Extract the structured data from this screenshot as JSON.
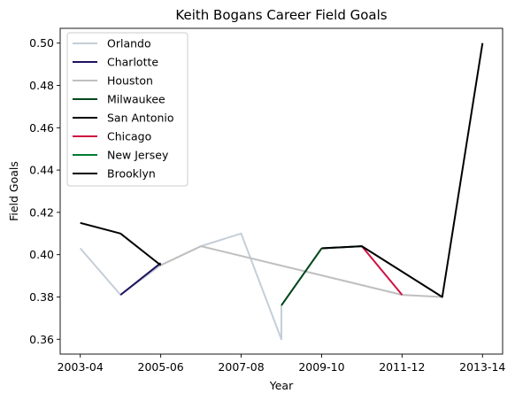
{
  "chart_data": {
    "type": "line",
    "title": "Keith Bogans Career Field Goals",
    "xlabel": "Year",
    "ylabel": "Field Goals",
    "x_ticks": [
      "2003-04",
      "2005-06",
      "2007-08",
      "2009-10",
      "2011-12",
      "2013-14"
    ],
    "x_tick_positions": [
      0,
      2,
      4,
      6,
      8,
      10
    ],
    "ylim": [
      0.353,
      0.507
    ],
    "xlim": [
      -0.5,
      10.5
    ],
    "y_ticks": [
      0.36,
      0.38,
      0.4,
      0.42,
      0.44,
      0.46,
      0.48,
      0.5
    ],
    "y_tick_labels": [
      "0.36",
      "0.38",
      "0.40",
      "0.42",
      "0.44",
      "0.46",
      "0.48",
      "0.50"
    ],
    "grid": false,
    "legend_position": "top-left",
    "series": [
      {
        "name": "Orlando",
        "color": "#c4ced8",
        "points": [
          [
            0,
            0.403
          ],
          [
            1,
            0.381
          ],
          [
            2,
            0.395
          ],
          [
            3,
            0.404
          ],
          [
            4,
            0.41
          ],
          [
            5,
            0.36
          ],
          [
            5,
            0.376
          ]
        ]
      },
      {
        "name": "Charlotte",
        "color": "#1d1160",
        "points": [
          [
            1,
            0.381
          ],
          [
            2,
            0.396
          ]
        ]
      },
      {
        "name": "Houston",
        "color": "#bfbfbf",
        "points": [
          [
            2,
            0.395
          ],
          [
            3,
            0.404
          ],
          [
            8,
            0.381
          ],
          [
            9,
            0.38
          ]
        ]
      },
      {
        "name": "Milwaukee",
        "color": "#00471b",
        "points": [
          [
            5,
            0.376
          ],
          [
            6,
            0.403
          ]
        ]
      },
      {
        "name": "San Antonio",
        "color": "#000000",
        "points": [
          [
            0,
            0.415
          ],
          [
            1,
            0.41
          ],
          [
            2,
            0.395
          ]
        ]
      },
      {
        "name": "Chicago",
        "color": "#ce1141",
        "points": [
          [
            7,
            0.404
          ],
          [
            8,
            0.381
          ]
        ]
      },
      {
        "name": "New Jersey",
        "color": "#007a33",
        "points": [
          [
            6,
            0.403
          ],
          [
            7,
            0.404
          ]
        ]
      },
      {
        "name": "Brooklyn",
        "color": "#000000",
        "points": [
          [
            6,
            0.403
          ],
          [
            7,
            0.404
          ],
          [
            9,
            0.38
          ],
          [
            10,
            0.5
          ]
        ]
      }
    ]
  }
}
